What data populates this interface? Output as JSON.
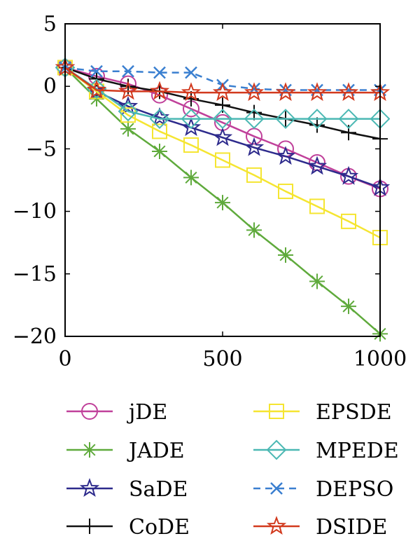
{
  "chart_data": {
    "type": "line",
    "title": "",
    "xlabel": "",
    "ylabel": "",
    "xlim": [
      0,
      1000
    ],
    "ylim": [
      -20,
      5
    ],
    "x_ticks": [
      0,
      500,
      1000
    ],
    "x_tick_labels": [
      "0",
      "500",
      "1000"
    ],
    "y_ticks": [
      5,
      0,
      -5,
      -10,
      -15,
      -20
    ],
    "y_tick_labels": [
      "5",
      "0",
      "−5",
      "−10",
      "−15",
      "−20"
    ],
    "grid": false,
    "legend_position": "below",
    "x": [
      0,
      100,
      200,
      300,
      400,
      500,
      600,
      700,
      800,
      900,
      1000
    ],
    "series": [
      {
        "name": "jDE",
        "color": "#c0409a",
        "marker": "circle",
        "dash": "solid",
        "values": [
          1.5,
          0.8,
          0.2,
          -0.7,
          -1.8,
          -2.9,
          -4.0,
          -5.0,
          -6.1,
          -7.2,
          -8.2
        ]
      },
      {
        "name": "JADE",
        "color": "#5faa3c",
        "marker": "asterisk",
        "dash": "solid",
        "values": [
          1.5,
          -1.0,
          -3.4,
          -5.2,
          -7.3,
          -9.3,
          -11.5,
          -13.5,
          -15.6,
          -17.6,
          -19.8
        ]
      },
      {
        "name": "SaDE",
        "color": "#2d2a8c",
        "marker": "star",
        "dash": "solid",
        "values": [
          1.5,
          -0.4,
          -1.6,
          -2.5,
          -3.3,
          -4.1,
          -4.9,
          -5.6,
          -6.4,
          -7.2,
          -8.1
        ]
      },
      {
        "name": "CoDE",
        "color": "#111111",
        "marker": "plus",
        "dash": "solid",
        "values": [
          1.5,
          0.6,
          0.0,
          -0.4,
          -1.0,
          -1.5,
          -2.1,
          -2.6,
          -3.1,
          -3.7,
          -4.2
        ]
      },
      {
        "name": "EPSDE",
        "color": "#f5e531",
        "marker": "square",
        "dash": "solid",
        "values": [
          1.5,
          -0.4,
          -2.3,
          -3.6,
          -4.7,
          -5.9,
          -7.1,
          -8.4,
          -9.6,
          -10.8,
          -12.1
        ]
      },
      {
        "name": "MPEDE",
        "color": "#4bb8b3",
        "marker": "diamond",
        "dash": "solid",
        "values": [
          1.5,
          -0.2,
          -2.0,
          -2.6,
          -2.6,
          -2.6,
          -2.6,
          -2.6,
          -2.6,
          -2.6,
          -2.6
        ]
      },
      {
        "name": "DEPSO",
        "color": "#3a7fd0",
        "marker": "x",
        "dash": "dashed",
        "values": [
          1.5,
          1.2,
          1.2,
          1.1,
          1.1,
          0.1,
          -0.2,
          -0.3,
          -0.3,
          -0.3,
          -0.3
        ]
      },
      {
        "name": "DSIDE",
        "color": "#d23a1e",
        "marker": "star",
        "dash": "solid",
        "values": [
          1.5,
          -0.3,
          -0.4,
          -0.4,
          -0.5,
          -0.5,
          -0.5,
          -0.5,
          -0.5,
          -0.5,
          -0.5
        ]
      }
    ],
    "legend_columns": [
      [
        "jDE",
        "JADE",
        "SaDE",
        "CoDE"
      ],
      [
        "EPSDE",
        "MPEDE",
        "DEPSO",
        "DSIDE"
      ]
    ]
  }
}
